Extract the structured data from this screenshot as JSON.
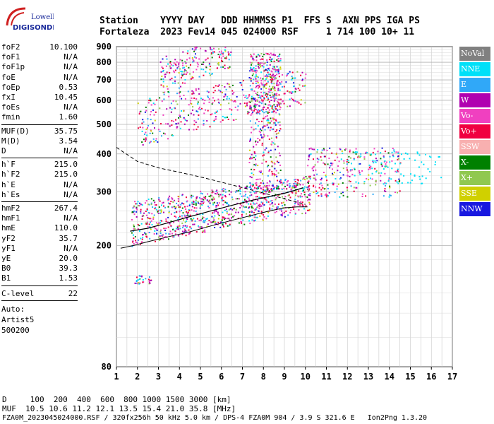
{
  "logo": {
    "line1": "Lowell",
    "line2": "DIGISONDE"
  },
  "header": {
    "line1": "Station    YYYY DAY   DDD HHMMSS P1  FFS S  AXN PPS IGA PS",
    "line2": "Fortaleza  2023 Fev14 045 024000 RSF     1 714 100 10+ 11"
  },
  "params_group1": [
    {
      "label": "foF2",
      "value": "10.100"
    },
    {
      "label": "foF1",
      "value": "N/A"
    },
    {
      "label": "foF1p",
      "value": "N/A"
    },
    {
      "label": "foE",
      "value": "N/A"
    },
    {
      "label": "foEp",
      "value": "0.53"
    },
    {
      "label": "fxI",
      "value": "10.45"
    },
    {
      "label": "foEs",
      "value": "N/A"
    },
    {
      "label": "fmin",
      "value": "1.60"
    }
  ],
  "params_group2": [
    {
      "label": "MUF(D)",
      "value": "35.75"
    },
    {
      "label": "M(D)",
      "value": "3.54"
    },
    {
      "label": "D",
      "value": "N/A"
    }
  ],
  "params_group3": [
    {
      "label": "h`F",
      "value": "215.0"
    },
    {
      "label": "h`F2",
      "value": "215.0"
    },
    {
      "label": "h`E",
      "value": "N/A"
    },
    {
      "label": "h`Es",
      "value": "N/A"
    }
  ],
  "params_group4": [
    {
      "label": "hmF2",
      "value": "267.4"
    },
    {
      "label": "hmF1",
      "value": "N/A"
    },
    {
      "label": "hmE",
      "value": "110.0"
    },
    {
      "label": "yF2",
      "value": "35.7"
    },
    {
      "label": "yF1",
      "value": "N/A"
    },
    {
      "label": "yE",
      "value": "20.0"
    },
    {
      "label": "B0",
      "value": "39.3"
    },
    {
      "label": "B1",
      "value": "1.53"
    }
  ],
  "clevel": {
    "label": "C-level",
    "value": "22"
  },
  "auto": {
    "line1": "Auto:",
    "line2": "Artist5",
    "line3": "500200"
  },
  "legend": [
    {
      "name": "NoVal",
      "color": "#808080"
    },
    {
      "name": "NNE",
      "color": "#00e0f8"
    },
    {
      "name": "E",
      "color": "#30a8f8"
    },
    {
      "name": "W",
      "color": "#b000b0"
    },
    {
      "name": "Vo-",
      "color": "#f040c0"
    },
    {
      "name": "Vo+",
      "color": "#f00040"
    },
    {
      "name": "SSW",
      "color": "#f8b0b0"
    },
    {
      "name": "X-",
      "color": "#008000"
    },
    {
      "name": "X+",
      "color": "#90c850"
    },
    {
      "name": "SSE",
      "color": "#d0d000"
    },
    {
      "name": "NNW",
      "color": "#1818e0"
    }
  ],
  "footer": {
    "line1": "D     100  200  400  600  800 1000 1500 3000 [km]",
    "line2": "MUF  10.5 10.6 11.2 12.1 13.5 15.4 21.0 35.8 [MHz]",
    "line3": "FZA0M_2023045024000.RSF / 320fx256h 50 kHz 5.0 km / DPS-4 FZA0M 904 / 3.9 S 321.6 E   Ion2Png 1.3.20"
  },
  "chart_data": {
    "type": "scatter",
    "title": "",
    "xlabel": "",
    "ylabel": "",
    "xlim": [
      1,
      17
    ],
    "ylim": [
      80,
      900
    ],
    "y_scale": "log",
    "x_ticks": [
      1,
      2,
      3,
      4,
      5,
      6,
      7,
      8,
      9,
      10,
      11,
      12,
      13,
      14,
      15,
      16,
      17
    ],
    "y_ticks": [
      80,
      200,
      300,
      400,
      500,
      600,
      700,
      800,
      900
    ],
    "grid": true,
    "legend_placement": "right",
    "profile_x": [
      1.2,
      1.8,
      2.5,
      3.5,
      4.5,
      5.5,
      6.5,
      7.5,
      8.3,
      9.0,
      9.6,
      10.0,
      10.1
    ],
    "profile_y": [
      196,
      200,
      206,
      214,
      222,
      232,
      242,
      252,
      260,
      266,
      268,
      268,
      268
    ],
    "trace_x": [
      1.65,
      2.5,
      3.5,
      4.5,
      5.5,
      6.5,
      7.5,
      8.3,
      9.0,
      9.6,
      9.9
    ],
    "trace_y": [
      223,
      228,
      238,
      249,
      260,
      271,
      282,
      290,
      297,
      305,
      310
    ],
    "extrap_x": [
      1.0,
      2.0,
      3.0,
      4.0,
      5.0,
      6.0,
      7.0,
      7.8,
      8.6,
      9.4,
      10.0
    ],
    "extrap_y": [
      420,
      378,
      360,
      348,
      336,
      323,
      310,
      300,
      290,
      280,
      273
    ]
  }
}
